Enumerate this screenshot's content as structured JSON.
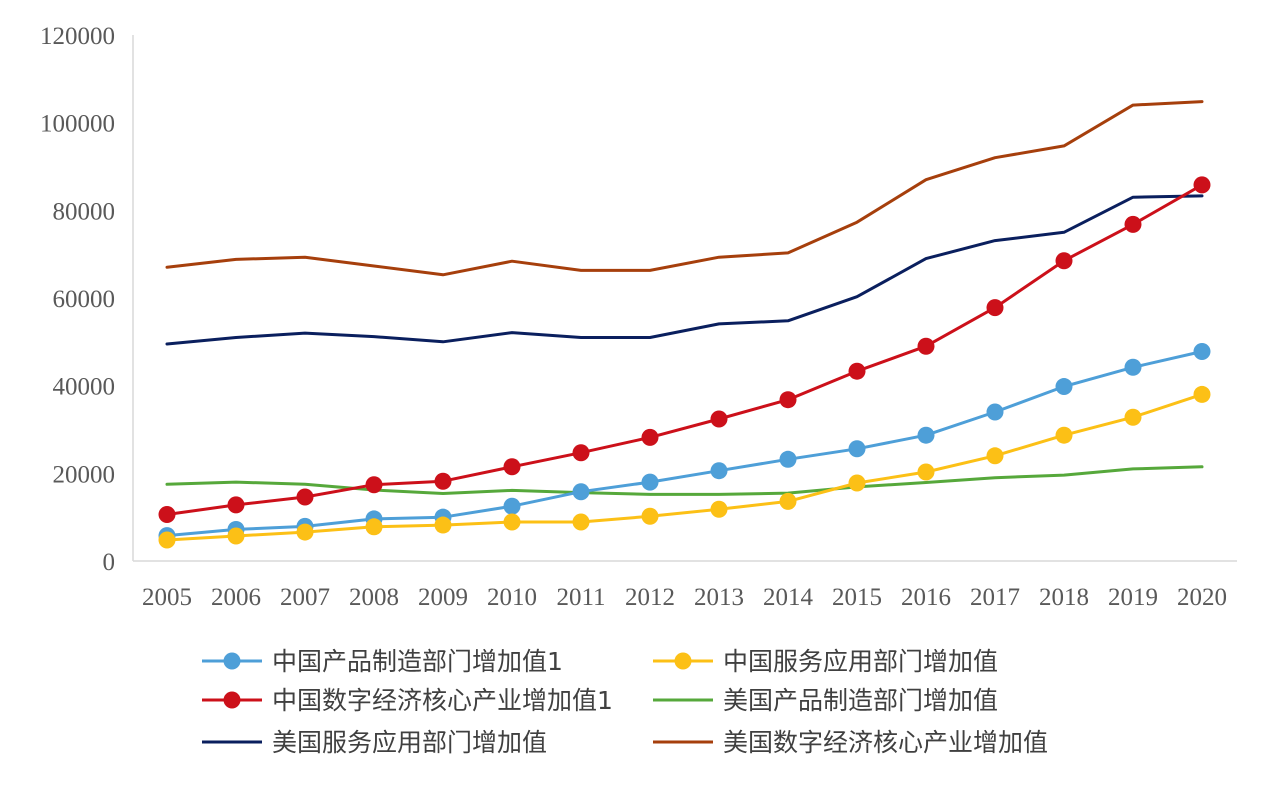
{
  "chart_data": {
    "type": "line",
    "title": "",
    "xlabel": "",
    "ylabel": "",
    "x": [
      "2005",
      "2006",
      "2007",
      "2008",
      "2009",
      "2010",
      "2011",
      "2012",
      "2013",
      "2014",
      "2015",
      "2016",
      "2017",
      "2018",
      "2019",
      "2020"
    ],
    "ylim": [
      0,
      120000
    ],
    "yticks": [
      "0",
      "20000",
      "40000",
      "60000",
      "80000",
      "100000",
      "120000"
    ],
    "grid": false,
    "legend_position": "bottom",
    "series": [
      {
        "name": "中国产品制造部门增加值1",
        "color": "#4e9fd8",
        "marker": true,
        "values": [
          5800,
          7200,
          7900,
          9600,
          10000,
          12500,
          15800,
          18000,
          20600,
          23200,
          25600,
          28700,
          34000,
          39800,
          44200,
          47800
        ]
      },
      {
        "name": "中国服务应用部门增加值",
        "color": "#fcc016",
        "marker": true,
        "values": [
          4800,
          5700,
          6600,
          7800,
          8200,
          8900,
          8900,
          10200,
          11800,
          13600,
          17800,
          20300,
          24000,
          28700,
          32800,
          38000
        ]
      },
      {
        "name": "中国数字经济核心产业增加值1",
        "color": "#cc101a",
        "marker": true,
        "values": [
          10600,
          12800,
          14600,
          17400,
          18200,
          21500,
          24700,
          28200,
          32400,
          36800,
          43300,
          49000,
          57800,
          68500,
          76800,
          85800
        ]
      },
      {
        "name": "美国产品制造部门增加值",
        "color": "#56a83b",
        "marker": false,
        "values": [
          17500,
          18000,
          17500,
          16200,
          15400,
          16100,
          15600,
          15200,
          15200,
          15500,
          16900,
          17900,
          19000,
          19600,
          21000,
          21500
        ]
      },
      {
        "name": "美国服务应用部门增加值",
        "color": "#0a1f5e",
        "marker": false,
        "values": [
          49500,
          51000,
          52000,
          51200,
          50000,
          52100,
          51000,
          51000,
          54100,
          54800,
          60300,
          69000,
          73100,
          75000,
          83000,
          83300
        ]
      },
      {
        "name": "美国数字经济核心产业增加值",
        "color": "#a63f0c",
        "marker": false,
        "values": [
          67000,
          68800,
          69300,
          67300,
          65300,
          68400,
          66300,
          66300,
          69300,
          70300,
          77300,
          87000,
          92000,
          94700,
          104000,
          104800
        ]
      }
    ]
  }
}
